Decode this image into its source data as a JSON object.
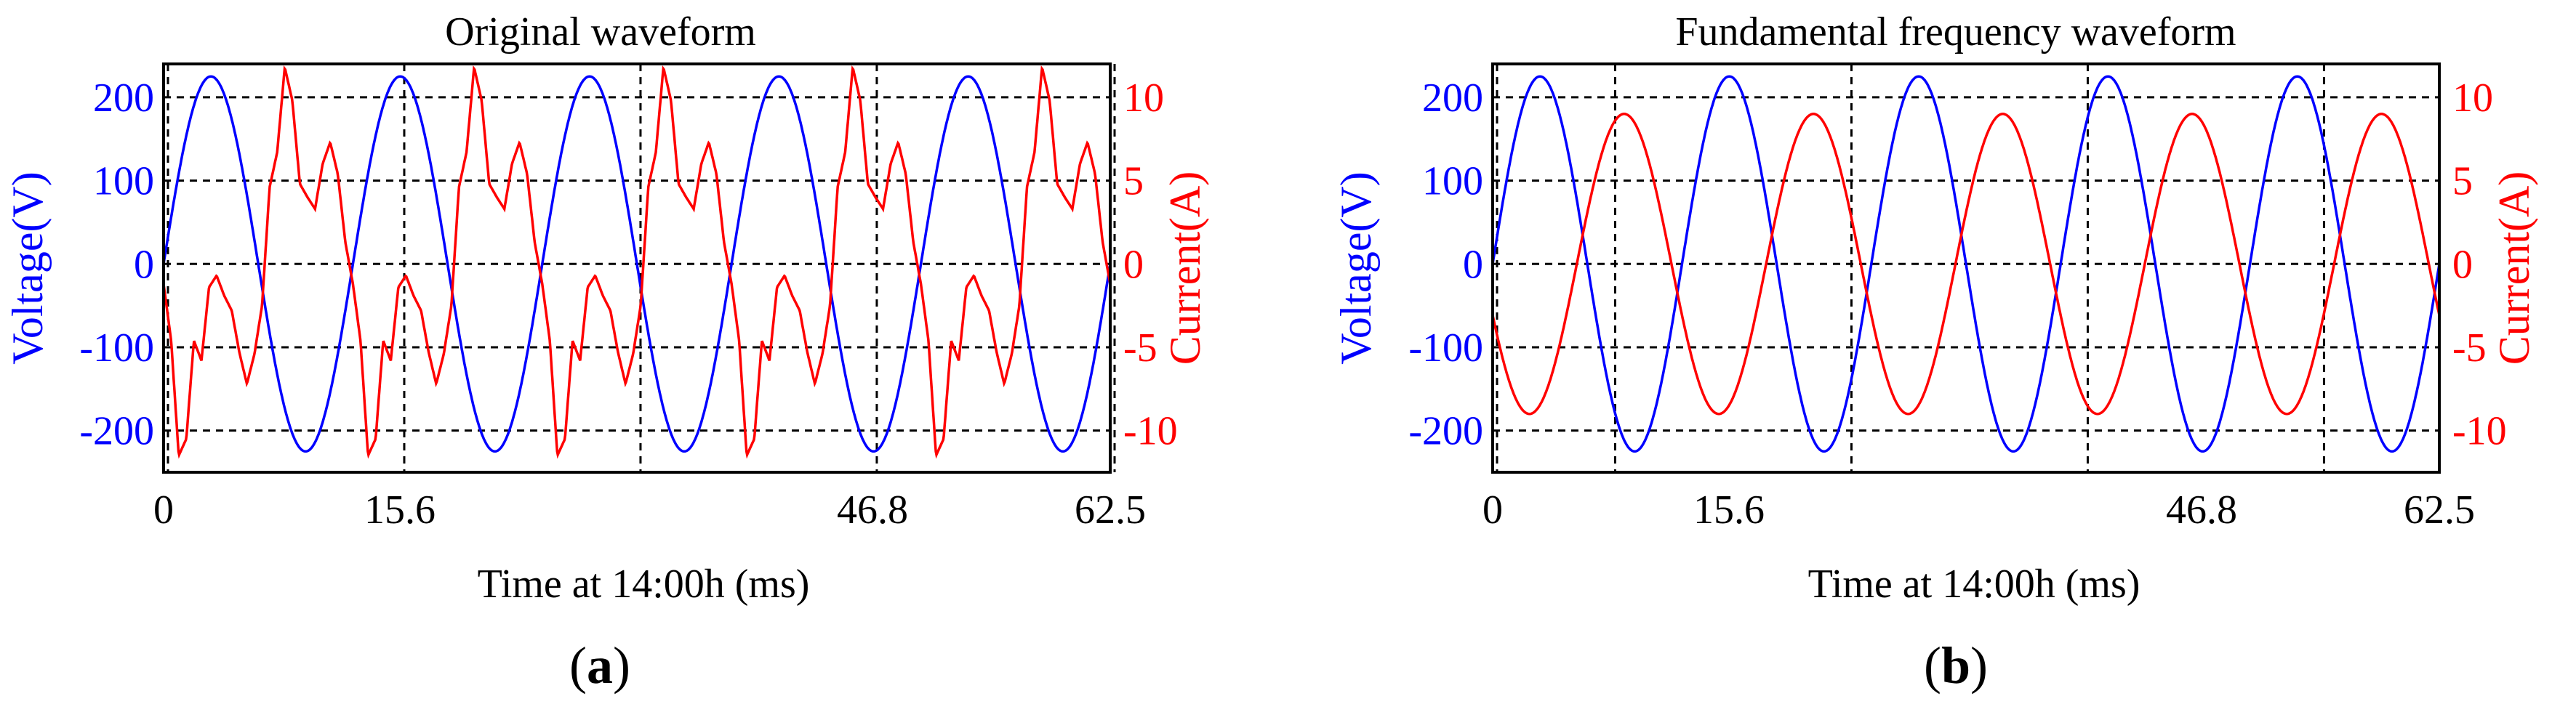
{
  "figure": {
    "colors": {
      "voltage": "#0000ff",
      "current": "#ff0000",
      "grid": "#000000",
      "text": "#000000"
    }
  },
  "chart_data": [
    {
      "type": "line",
      "panel_label": "a",
      "title": "Original waveform",
      "xlabel": "Time at 14:00h (ms)",
      "ylabel_left": "Voltage(V)",
      "ylabel_right": "Current(A)",
      "x_ticks": [
        "0",
        "15.6",
        "46.8",
        "62.5"
      ],
      "y_left_ticks": [
        "200",
        "100",
        "0",
        "-100",
        "-200"
      ],
      "y_right_ticks": [
        "10",
        "5",
        "0",
        "-5",
        "-10"
      ],
      "xlim": [
        0,
        62.5
      ],
      "ylim_left": [
        -250,
        240
      ],
      "ylim_right": [
        -12.5,
        12
      ],
      "grid": true,
      "series": [
        {
          "axis": "left",
          "color": "#0000ff",
          "kind": "sine",
          "amplitude": 225,
          "frequency_hz": 80,
          "phase_deg": 0
        },
        {
          "axis": "right",
          "color": "#ff0000",
          "kind": "distorted_periodic",
          "period_ms": 12.5,
          "samples_per_period": [
            -1.2,
            -4.6,
            -11.5,
            -10.5,
            -4.6,
            -5.8,
            -1.4,
            -0.7,
            -1.9,
            -2.8,
            -5.3,
            -7.2,
            -5.4,
            -2.5,
            4.6,
            6.7,
            11.8,
            9.8,
            4.8,
            4.0,
            3.3,
            6.0,
            7.3,
            5.4,
            1.3
          ]
        }
      ]
    },
    {
      "type": "line",
      "panel_label": "b",
      "title": "Fundamental frequency waveform",
      "xlabel": "Time at 14:00h (ms)",
      "ylabel_left": "Voltage(V)",
      "ylabel_right": "Current(A)",
      "x_ticks": [
        "0",
        "15.6",
        "46.8",
        "62.5"
      ],
      "y_left_ticks": [
        "200",
        "100",
        "0",
        "-100",
        "-200"
      ],
      "y_right_ticks": [
        "10",
        "5",
        "0",
        "-5",
        "-10"
      ],
      "xlim": [
        0,
        62.5
      ],
      "ylim_left": [
        -250,
        240
      ],
      "ylim_right": [
        -12.5,
        12
      ],
      "grid": true,
      "series": [
        {
          "axis": "left",
          "color": "#0000ff",
          "kind": "sine",
          "amplitude": 225,
          "frequency_hz": 80,
          "phase_deg": 0
        },
        {
          "axis": "right",
          "color": "#ff0000",
          "kind": "sine",
          "amplitude": 9,
          "frequency_hz": 80,
          "phase_deg": 200
        }
      ]
    }
  ]
}
